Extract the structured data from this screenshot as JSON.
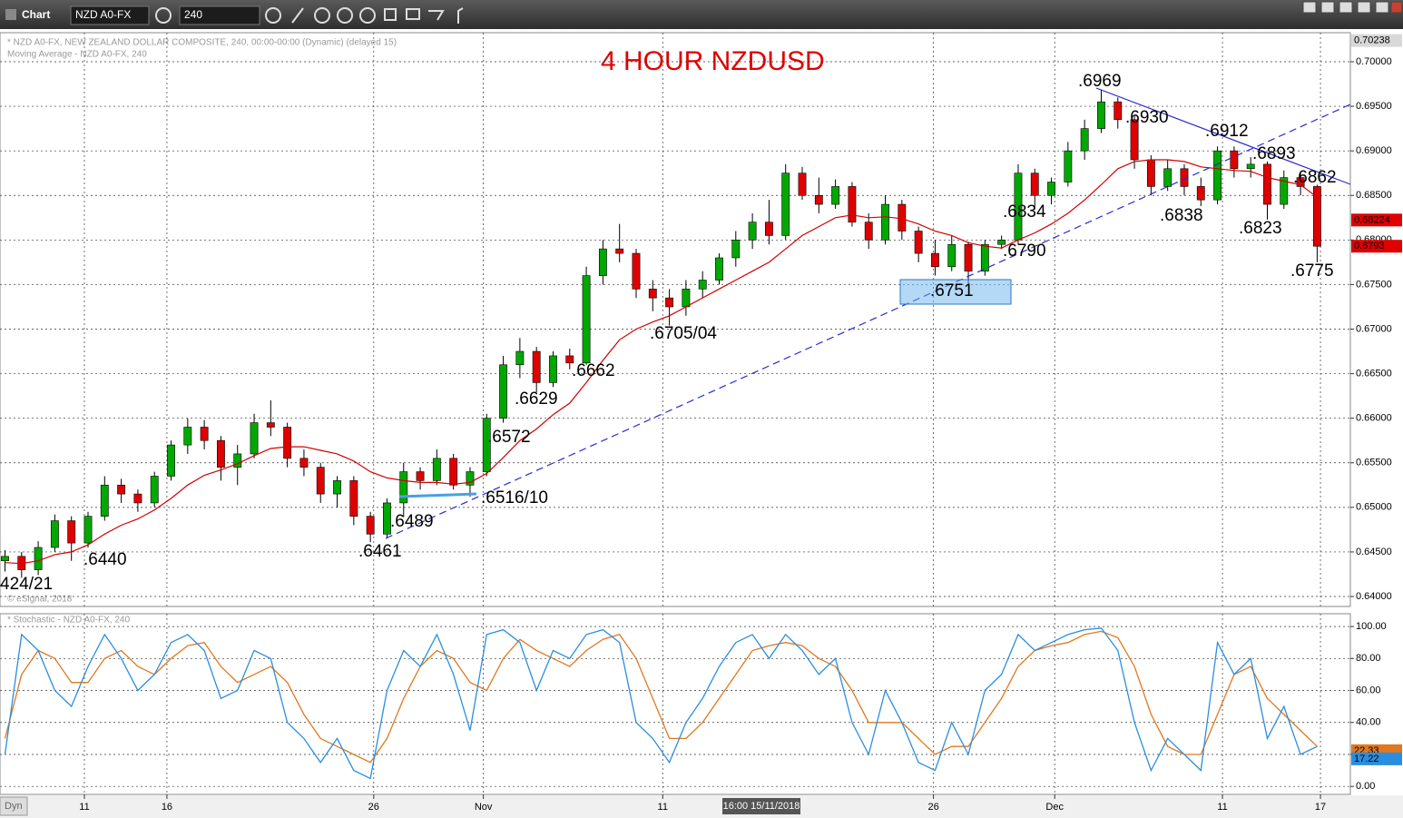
{
  "toolbar": {
    "app": "Chart",
    "symbol": "NZD A0-FX",
    "interval": "240"
  },
  "footer": {
    "mode": "Dyn"
  },
  "chart_data": [
    {
      "type": "candlestick",
      "title": "4 HOUR NZDUSD",
      "subtitle": "* NZD A0-FX, NEW ZEALAND DOLLAR COMPOSITE, 240, 00:00-00:00 (Dynamic) (delayed 15)",
      "ma_name": "Moving Average - NZD A0-FX, 240",
      "credit": "© eSignal, 2018",
      "cursor_label": "16:00 15/11/2018",
      "up_color": "#00a800",
      "down_color": "#e00000",
      "ma_color": "#d00000",
      "ohlc": [
        [
          0.644,
          0.6452,
          0.6428,
          0.6445
        ],
        [
          0.6445,
          0.645,
          0.6421,
          0.643
        ],
        [
          0.643,
          0.6462,
          0.6424,
          0.6455
        ],
        [
          0.6455,
          0.6492,
          0.645,
          0.6485
        ],
        [
          0.6485,
          0.649,
          0.644,
          0.646
        ],
        [
          0.646,
          0.6495,
          0.6455,
          0.649
        ],
        [
          0.649,
          0.6535,
          0.6485,
          0.6525
        ],
        [
          0.6525,
          0.6532,
          0.6505,
          0.6515
        ],
        [
          0.6515,
          0.652,
          0.6495,
          0.6505
        ],
        [
          0.6505,
          0.654,
          0.65,
          0.6535
        ],
        [
          0.6535,
          0.6575,
          0.653,
          0.657
        ],
        [
          0.657,
          0.66,
          0.656,
          0.659
        ],
        [
          0.659,
          0.6598,
          0.6565,
          0.6575
        ],
        [
          0.6575,
          0.658,
          0.653,
          0.6545
        ],
        [
          0.6545,
          0.657,
          0.6525,
          0.656
        ],
        [
          0.656,
          0.6605,
          0.6555,
          0.6595
        ],
        [
          0.6595,
          0.662,
          0.658,
          0.659
        ],
        [
          0.659,
          0.6595,
          0.6545,
          0.6555
        ],
        [
          0.6555,
          0.6565,
          0.6535,
          0.6545
        ],
        [
          0.6545,
          0.655,
          0.6505,
          0.6515
        ],
        [
          0.6515,
          0.6535,
          0.65,
          0.653
        ],
        [
          0.653,
          0.6535,
          0.648,
          0.649
        ],
        [
          0.649,
          0.6495,
          0.6461,
          0.647
        ],
        [
          0.647,
          0.651,
          0.6465,
          0.6505
        ],
        [
          0.6505,
          0.655,
          0.6489,
          0.654
        ],
        [
          0.654,
          0.6545,
          0.652,
          0.653
        ],
        [
          0.653,
          0.6565,
          0.6525,
          0.6555
        ],
        [
          0.6555,
          0.656,
          0.652,
          0.6525
        ],
        [
          0.6525,
          0.6545,
          0.6512,
          0.654
        ],
        [
          0.654,
          0.6605,
          0.6535,
          0.66
        ],
        [
          0.66,
          0.667,
          0.6595,
          0.666
        ],
        [
          0.666,
          0.669,
          0.6645,
          0.6675
        ],
        [
          0.6675,
          0.668,
          0.6629,
          0.664
        ],
        [
          0.664,
          0.6675,
          0.6635,
          0.667
        ],
        [
          0.667,
          0.6678,
          0.6655,
          0.6662
        ],
        [
          0.6662,
          0.677,
          0.666,
          0.676
        ],
        [
          0.676,
          0.68,
          0.675,
          0.679
        ],
        [
          0.679,
          0.6818,
          0.6775,
          0.6785
        ],
        [
          0.6785,
          0.679,
          0.6735,
          0.6745
        ],
        [
          0.6745,
          0.6755,
          0.672,
          0.6735
        ],
        [
          0.6735,
          0.6745,
          0.6704,
          0.6725
        ],
        [
          0.6725,
          0.6755,
          0.6715,
          0.6745
        ],
        [
          0.6745,
          0.6765,
          0.6735,
          0.6755
        ],
        [
          0.6755,
          0.6785,
          0.675,
          0.678
        ],
        [
          0.678,
          0.681,
          0.677,
          0.68
        ],
        [
          0.68,
          0.683,
          0.679,
          0.682
        ],
        [
          0.682,
          0.6845,
          0.6795,
          0.6805
        ],
        [
          0.6805,
          0.6885,
          0.68,
          0.6875
        ],
        [
          0.6875,
          0.6882,
          0.6845,
          0.685
        ],
        [
          0.685,
          0.687,
          0.683,
          0.684
        ],
        [
          0.684,
          0.6868,
          0.6835,
          0.686
        ],
        [
          0.686,
          0.6865,
          0.6815,
          0.682
        ],
        [
          0.682,
          0.683,
          0.679,
          0.68
        ],
        [
          0.68,
          0.685,
          0.6795,
          0.684
        ],
        [
          0.684,
          0.6845,
          0.68,
          0.681
        ],
        [
          0.681,
          0.6815,
          0.6775,
          0.6785
        ],
        [
          0.6785,
          0.68,
          0.676,
          0.677
        ],
        [
          0.677,
          0.6805,
          0.6765,
          0.6795
        ],
        [
          0.6795,
          0.6798,
          0.6751,
          0.6765
        ],
        [
          0.6765,
          0.68,
          0.676,
          0.6795
        ],
        [
          0.6795,
          0.6805,
          0.679,
          0.68
        ],
        [
          0.68,
          0.6885,
          0.6795,
          0.6875
        ],
        [
          0.6875,
          0.688,
          0.6834,
          0.685
        ],
        [
          0.685,
          0.687,
          0.684,
          0.6865
        ],
        [
          0.6865,
          0.691,
          0.686,
          0.69
        ],
        [
          0.69,
          0.6935,
          0.689,
          0.6925
        ],
        [
          0.6925,
          0.6969,
          0.692,
          0.6955
        ],
        [
          0.6955,
          0.696,
          0.6925,
          0.6935
        ],
        [
          0.6935,
          0.694,
          0.688,
          0.689
        ],
        [
          0.689,
          0.6895,
          0.685,
          0.686
        ],
        [
          0.686,
          0.689,
          0.6855,
          0.688
        ],
        [
          0.688,
          0.6885,
          0.685,
          0.686
        ],
        [
          0.686,
          0.687,
          0.6838,
          0.6845
        ],
        [
          0.6845,
          0.6905,
          0.684,
          0.69
        ],
        [
          0.69,
          0.6905,
          0.687,
          0.688
        ],
        [
          0.688,
          0.6893,
          0.687,
          0.6885
        ],
        [
          0.6885,
          0.6888,
          0.6823,
          0.684
        ],
        [
          0.684,
          0.6878,
          0.6835,
          0.687
        ],
        [
          0.687,
          0.6875,
          0.685,
          0.686
        ],
        [
          0.686,
          0.6862,
          0.6775,
          0.6793
        ]
      ],
      "ma": [
        0.6438,
        0.6437,
        0.644,
        0.6447,
        0.645,
        0.6458,
        0.647,
        0.648,
        0.6487,
        0.6497,
        0.651,
        0.6525,
        0.6536,
        0.6542,
        0.6549,
        0.6558,
        0.6566,
        0.6568,
        0.6568,
        0.6564,
        0.656,
        0.6552,
        0.654,
        0.6533,
        0.653,
        0.6528,
        0.6528,
        0.6526,
        0.6528,
        0.6538,
        0.6556,
        0.6575,
        0.6588,
        0.6604,
        0.6617,
        0.664,
        0.6665,
        0.6688,
        0.67,
        0.6708,
        0.6715,
        0.6725,
        0.6735,
        0.6745,
        0.6755,
        0.6765,
        0.6775,
        0.679,
        0.6805,
        0.6815,
        0.6825,
        0.6828,
        0.6825,
        0.6826,
        0.6824,
        0.6818,
        0.681,
        0.6805,
        0.6797,
        0.6793,
        0.6791,
        0.68,
        0.6808,
        0.6818,
        0.683,
        0.6845,
        0.6862,
        0.688,
        0.6888,
        0.689,
        0.689,
        0.6888,
        0.6882,
        0.688,
        0.6878,
        0.6877,
        0.687,
        0.6866,
        0.6862,
        0.6848
      ],
      "xlim": [
        -0.3,
        81
      ],
      "xticks": [
        {
          "value": 4.78,
          "label": "11"
        },
        {
          "value": 9.75,
          "label": "16"
        },
        {
          "value": 22.2,
          "label": "26"
        },
        {
          "value": 28.8,
          "label": "Nov"
        },
        {
          "value": 39.6,
          "label": "11"
        },
        {
          "value": 55.9,
          "label": "26"
        },
        {
          "value": 63.2,
          "label": "Dec"
        },
        {
          "value": 73.3,
          "label": "11"
        },
        {
          "value": 79.2,
          "label": "17"
        }
      ],
      "ylim": [
        0.63888,
        0.70326
      ],
      "yticks": [
        {
          "value": 0.64,
          "label": "0.64000"
        },
        {
          "value": 0.645,
          "label": "0.64500"
        },
        {
          "value": 0.65,
          "label": "0.65000"
        },
        {
          "value": 0.655,
          "label": "0.65500"
        },
        {
          "value": 0.66,
          "label": "0.66000"
        },
        {
          "value": 0.665,
          "label": "0.66500"
        },
        {
          "value": 0.67,
          "label": "0.67000"
        },
        {
          "value": 0.675,
          "label": "0.67500"
        },
        {
          "value": 0.68,
          "label": "0.68000"
        },
        {
          "value": 0.685,
          "label": "0.68500"
        },
        {
          "value": 0.69,
          "label": "0.69000"
        },
        {
          "value": 0.695,
          "label": "0.69500"
        },
        {
          "value": 0.7,
          "label": "0.70000"
        }
      ],
      "grid": true,
      "markers": [
        {
          "value": 0.70238,
          "color": "#d8d8d8"
        },
        {
          "value": 0.68224,
          "color": "#e00000"
        },
        {
          "value": 0.6793,
          "color": "#e00000"
        }
      ],
      "annotations": [
        ".6969",
        ".6930",
        ".6912",
        ".6893",
        ".6862",
        ".6838",
        ".6823",
        ".6775",
        ".6834",
        ".6790",
        ".6751",
        ".6705/04",
        ".6662",
        ".6629",
        ".6572",
        ".6516/10",
        ".6489",
        ".6461",
        ".6440",
        "424/21"
      ]
    },
    {
      "type": "line",
      "title": "* Stochastic - NZD A0-FX, 240",
      "series": [
        {
          "color": "#2a8ee0",
          "values": [
            20,
            95,
            85,
            60,
            50,
            75,
            95,
            80,
            60,
            70,
            90,
            95,
            85,
            55,
            60,
            85,
            80,
            40,
            30,
            15,
            30,
            10,
            5,
            60,
            85,
            75,
            95,
            70,
            35,
            95,
            98,
            90,
            60,
            85,
            80,
            95,
            98,
            90,
            40,
            30,
            15,
            40,
            55,
            75,
            90,
            95,
            80,
            95,
            85,
            70,
            80,
            40,
            20,
            60,
            40,
            15,
            10,
            40,
            20,
            60,
            70,
            95,
            85,
            90,
            95,
            98,
            99,
            85,
            40,
            10,
            30,
            20,
            10,
            90,
            70,
            80,
            30,
            50,
            20,
            25
          ]
        },
        {
          "color": "#e07820",
          "values": [
            30,
            70,
            85,
            80,
            65,
            65,
            80,
            85,
            75,
            70,
            80,
            88,
            90,
            75,
            65,
            70,
            75,
            65,
            45,
            30,
            25,
            20,
            15,
            30,
            55,
            75,
            85,
            80,
            65,
            60,
            80,
            92,
            85,
            80,
            75,
            85,
            92,
            95,
            80,
            55,
            30,
            30,
            40,
            55,
            70,
            85,
            88,
            90,
            88,
            80,
            75,
            60,
            40,
            40,
            40,
            30,
            20,
            25,
            25,
            40,
            55,
            75,
            85,
            88,
            90,
            95,
            97,
            93,
            75,
            45,
            25,
            20,
            20,
            45,
            70,
            75,
            55,
            45,
            35,
            25
          ]
        }
      ],
      "ylim": [
        -5,
        108
      ],
      "yticks": [
        {
          "value": 0,
          "label": "0.00"
        },
        {
          "value": 20,
          "label": "20.00"
        },
        {
          "value": 40,
          "label": "40.00"
        },
        {
          "value": 60,
          "label": "60.00"
        },
        {
          "value": 80,
          "label": "80.00"
        },
        {
          "value": 100,
          "label": "100.00"
        }
      ],
      "grid": true,
      "markers": [
        {
          "value": 22.33,
          "color": "#e07820"
        },
        {
          "value": 17.22,
          "color": "#2a8ee0"
        }
      ]
    }
  ]
}
